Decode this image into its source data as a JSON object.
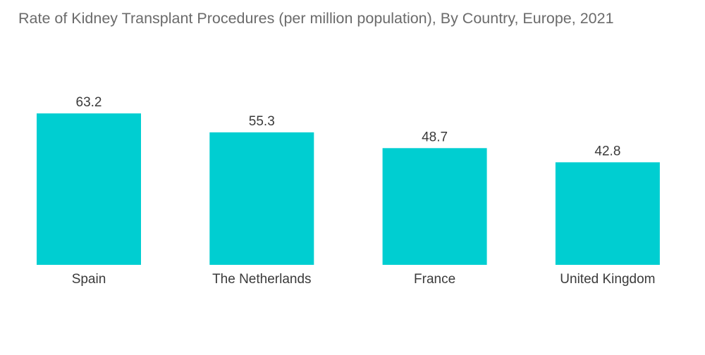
{
  "chart_data": {
    "type": "bar",
    "title": "Rate of Kidney Transplant Procedures (per million population), By Country, Europe, 2021",
    "categories": [
      "Spain",
      "The Netherlands",
      "France",
      "United Kingdom"
    ],
    "values": [
      63.2,
      55.3,
      48.7,
      42.8
    ],
    "value_labels": [
      "63.2",
      "55.3",
      "48.7",
      "42.8"
    ],
    "xlabel": "",
    "ylabel": "",
    "ylim": [
      0,
      63.2
    ],
    "grid": false,
    "legend": "none",
    "bar_color": "#00ced1"
  }
}
